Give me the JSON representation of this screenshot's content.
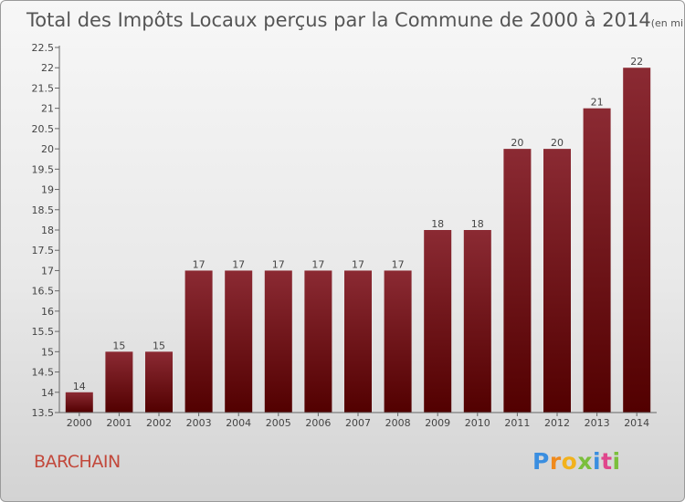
{
  "chart_data": {
    "type": "bar",
    "title": "Total des Impôts Locaux perçus par la Commune de 2000 à 2014",
    "subtitle": "(en milliers d'€)",
    "categories": [
      "2000",
      "2001",
      "2002",
      "2003",
      "2004",
      "2005",
      "2006",
      "2007",
      "2008",
      "2009",
      "2010",
      "2011",
      "2012",
      "2013",
      "2014"
    ],
    "values": [
      14,
      15,
      15,
      17,
      17,
      17,
      17,
      17,
      17,
      18,
      18,
      20,
      20,
      21,
      22
    ],
    "ylim": [
      13.5,
      22.5
    ],
    "yticks": [
      "13.5",
      "14",
      "14.5",
      "15",
      "15.5",
      "16",
      "16.5",
      "17",
      "17.5",
      "18",
      "18.5",
      "19",
      "19.5",
      "20",
      "20.5",
      "21",
      "21.5",
      "22",
      "22.5"
    ],
    "grid": false,
    "bar_color_top": "#8b2a33",
    "bar_color_bottom": "#520000"
  },
  "footer": {
    "commune": "BARCHAIN",
    "brand_letters": [
      "P",
      "r",
      "o",
      "x",
      "i",
      "t",
      "i"
    ],
    "brand_colors": [
      "#3a8ee0",
      "#f08a1c",
      "#f2b21c",
      "#7bbf3c",
      "#3a8ee0",
      "#e0468c",
      "#7bbf3c"
    ]
  }
}
